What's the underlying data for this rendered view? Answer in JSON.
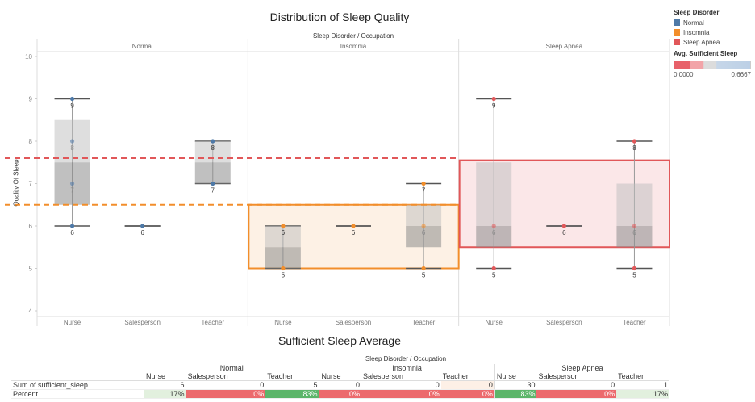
{
  "chart_data": [
    {
      "type": "box",
      "title": "Distribution of Sleep Quality",
      "header": "Sleep Disorder / Occupation",
      "ylabel": "Quality Of Sleep",
      "ylim": [
        4,
        10
      ],
      "yticks": [
        4,
        5,
        6,
        7,
        8,
        9,
        10
      ],
      "groups": [
        "Normal",
        "Insomnia",
        "Sleep Apnea"
      ],
      "categories": [
        "Nurse",
        "Salesperson",
        "Teacher"
      ],
      "colors": {
        "Normal": "#4e79a7",
        "Insomnia": "#f28e2b",
        "Sleep Apnea": "#e15759"
      },
      "boxes": [
        {
          "group": "Normal",
          "category": "Nurse",
          "min": 6,
          "q1": 6.5,
          "median": 7.5,
          "q3": 8.5,
          "max": 9,
          "points": [
            9,
            8,
            7,
            6
          ],
          "labels": [
            "9",
            "8",
            "7",
            "6"
          ]
        },
        {
          "group": "Normal",
          "category": "Salesperson",
          "min": 6,
          "q1": 6,
          "median": 6,
          "q3": 6,
          "max": 6,
          "points": [
            6
          ],
          "labels": [
            "6"
          ]
        },
        {
          "group": "Normal",
          "category": "Teacher",
          "min": 7,
          "q1": 7,
          "median": 7.5,
          "q3": 8,
          "max": 8,
          "points": [
            8,
            7
          ],
          "labels": [
            "8",
            "7"
          ]
        },
        {
          "group": "Insomnia",
          "category": "Nurse",
          "min": 5,
          "q1": 5,
          "median": 5.5,
          "q3": 6,
          "max": 6,
          "points": [
            6,
            5
          ],
          "labels": [
            "6",
            "5"
          ]
        },
        {
          "group": "Insomnia",
          "category": "Salesperson",
          "min": 6,
          "q1": 6,
          "median": 6,
          "q3": 6,
          "max": 6,
          "points": [
            6
          ],
          "labels": [
            "6"
          ]
        },
        {
          "group": "Insomnia",
          "category": "Teacher",
          "min": 5,
          "q1": 5.5,
          "median": 6,
          "q3": 6.5,
          "max": 7,
          "points": [
            7,
            6,
            5
          ],
          "labels": [
            "7",
            "6",
            "5"
          ]
        },
        {
          "group": "Sleep Apnea",
          "category": "Nurse",
          "min": 5,
          "q1": 5.5,
          "median": 6,
          "q3": 7.5,
          "max": 9,
          "points": [
            9,
            6,
            5
          ],
          "labels": [
            "9",
            "6",
            "5"
          ]
        },
        {
          "group": "Sleep Apnea",
          "category": "Salesperson",
          "min": 6,
          "q1": 6,
          "median": 6,
          "q3": 6,
          "max": 6,
          "points": [
            6
          ],
          "labels": [
            "6"
          ]
        },
        {
          "group": "Sleep Apnea",
          "category": "Teacher",
          "min": 5,
          "q1": 5.5,
          "median": 6,
          "q3": 7,
          "max": 8,
          "points": [
            8,
            6,
            5
          ],
          "labels": [
            "8",
            "6",
            "5"
          ]
        }
      ],
      "reference_lines": [
        {
          "value": 7.6,
          "color": "#e15759",
          "style": "dashed"
        },
        {
          "value": 6.5,
          "color": "#f28e2b",
          "style": "dashed"
        }
      ],
      "highlight_boxes": [
        {
          "group": "Insomnia",
          "y_from": 5,
          "y_to": 6.5,
          "color": "#f28e2b"
        },
        {
          "group": "Sleep Apnea",
          "y_from": 5.5,
          "y_to": 7.55,
          "color": "#e15759"
        }
      ]
    },
    {
      "type": "table",
      "title": "Sufficient Sleep Average",
      "header": "Sleep Disorder / Occupation",
      "groups": [
        "Normal",
        "Insomnia",
        "Sleep Apnea"
      ],
      "columns": [
        "Nurse",
        "Salesperson",
        "Teacher"
      ],
      "rows": [
        {
          "label": "Sum of sufficient_sleep",
          "values": [
            "6",
            "0",
            "5",
            "0",
            "0",
            "0",
            "30",
            "0",
            "1"
          ]
        },
        {
          "label": "Percent",
          "values": [
            "17%",
            "0%",
            "83%",
            "0%",
            "0%",
            "0%",
            "83%",
            "0%",
            "17%"
          ]
        }
      ],
      "percent_fractions": [
        0.17,
        0,
        0.83,
        0,
        0,
        0,
        0.83,
        0,
        0.17
      ]
    }
  ],
  "legend": {
    "title": "Sleep Disorder",
    "items": [
      {
        "label": "Normal",
        "color": "#4e79a7"
      },
      {
        "label": "Insomnia",
        "color": "#f28e2b"
      },
      {
        "label": "Sleep Apnea",
        "color": "#e15759"
      }
    ],
    "gradient_title": "Avg. Sufficient Sleep",
    "gradient_min": "0.0000",
    "gradient_max": "0.6667"
  }
}
